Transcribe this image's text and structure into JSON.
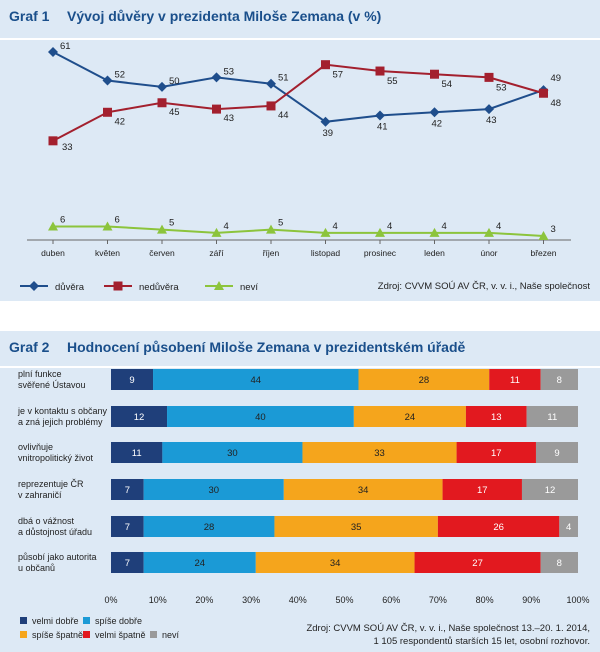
{
  "graph1": {
    "number": "Graf 1",
    "title": "Vývoj důvěry v prezidenta Miloše Zemana (v %)",
    "source": "Zdroj: CVVM SOÚ AV ČR, v. v. i., Naše společnost"
  },
  "graph2": {
    "number": "Graf 2",
    "title": "Hodnocení působení Miloše Zemana v prezidentském úřadě",
    "source_line1": "Zdroj: CVVM SOÚ AV ČR, v. v. i., Naše společnost 13.–20. 1. 2014,",
    "source_line2": "1 105 respondentů starších 15 let, osobní rozhovor."
  },
  "chart_data": [
    {
      "type": "line",
      "categories": [
        "duben",
        "květen",
        "červen",
        "září",
        "říjen",
        "listopad",
        "prosinec",
        "leden",
        "únor",
        "březen"
      ],
      "series": [
        {
          "name": "důvěra",
          "color": "#1f4e8c",
          "marker": "diamond",
          "values": [
            61,
            52,
            50,
            53,
            51,
            39,
            41,
            42,
            43,
            49
          ]
        },
        {
          "name": "nedůvěra",
          "color": "#a3202e",
          "marker": "square",
          "values": [
            33,
            42,
            45,
            43,
            44,
            57,
            55,
            54,
            53,
            48
          ]
        },
        {
          "name": "neví",
          "color": "#8cc43c",
          "marker": "triangle",
          "values": [
            6,
            6,
            5,
            4,
            5,
            4,
            4,
            4,
            4,
            3
          ]
        }
      ],
      "legend": "bottom-left",
      "grid": false
    },
    {
      "type": "bar",
      "orientation": "horizontal",
      "stacked": true,
      "categories": [
        [
          "plní funkce",
          "svěřené Ústavou"
        ],
        [
          "je v kontaktu s občany",
          "a zná jejich problémy"
        ],
        [
          "ovlivňuje",
          "vnitropolitický život"
        ],
        [
          "reprezentuje ČR",
          "v zahraničí"
        ],
        [
          "dbá o vážnost",
          "a důstojnost úřadu"
        ],
        [
          "působí jako autorita",
          "u občanů"
        ]
      ],
      "series": [
        {
          "name": "velmi dobře",
          "color": "#1f3f7a",
          "values": [
            9,
            12,
            11,
            7,
            7,
            7
          ]
        },
        {
          "name": "spíše dobře",
          "color": "#1b9ad6",
          "values": [
            44,
            40,
            30,
            30,
            28,
            24
          ]
        },
        {
          "name": "spíše špatně",
          "color": "#f5a51c",
          "values": [
            28,
            24,
            33,
            34,
            35,
            34
          ]
        },
        {
          "name": "velmi špatně",
          "color": "#e2191f",
          "values": [
            11,
            13,
            17,
            17,
            26,
            27
          ]
        },
        {
          "name": "neví",
          "color": "#9a9a9a",
          "values": [
            8,
            11,
            9,
            12,
            4,
            8
          ]
        }
      ],
      "xlim": [
        0,
        100
      ],
      "xticks": [
        "0%",
        "10%",
        "20%",
        "30%",
        "40%",
        "50%",
        "60%",
        "70%",
        "80%",
        "90%",
        "100%"
      ],
      "legend": "bottom-left",
      "grid": false
    }
  ]
}
